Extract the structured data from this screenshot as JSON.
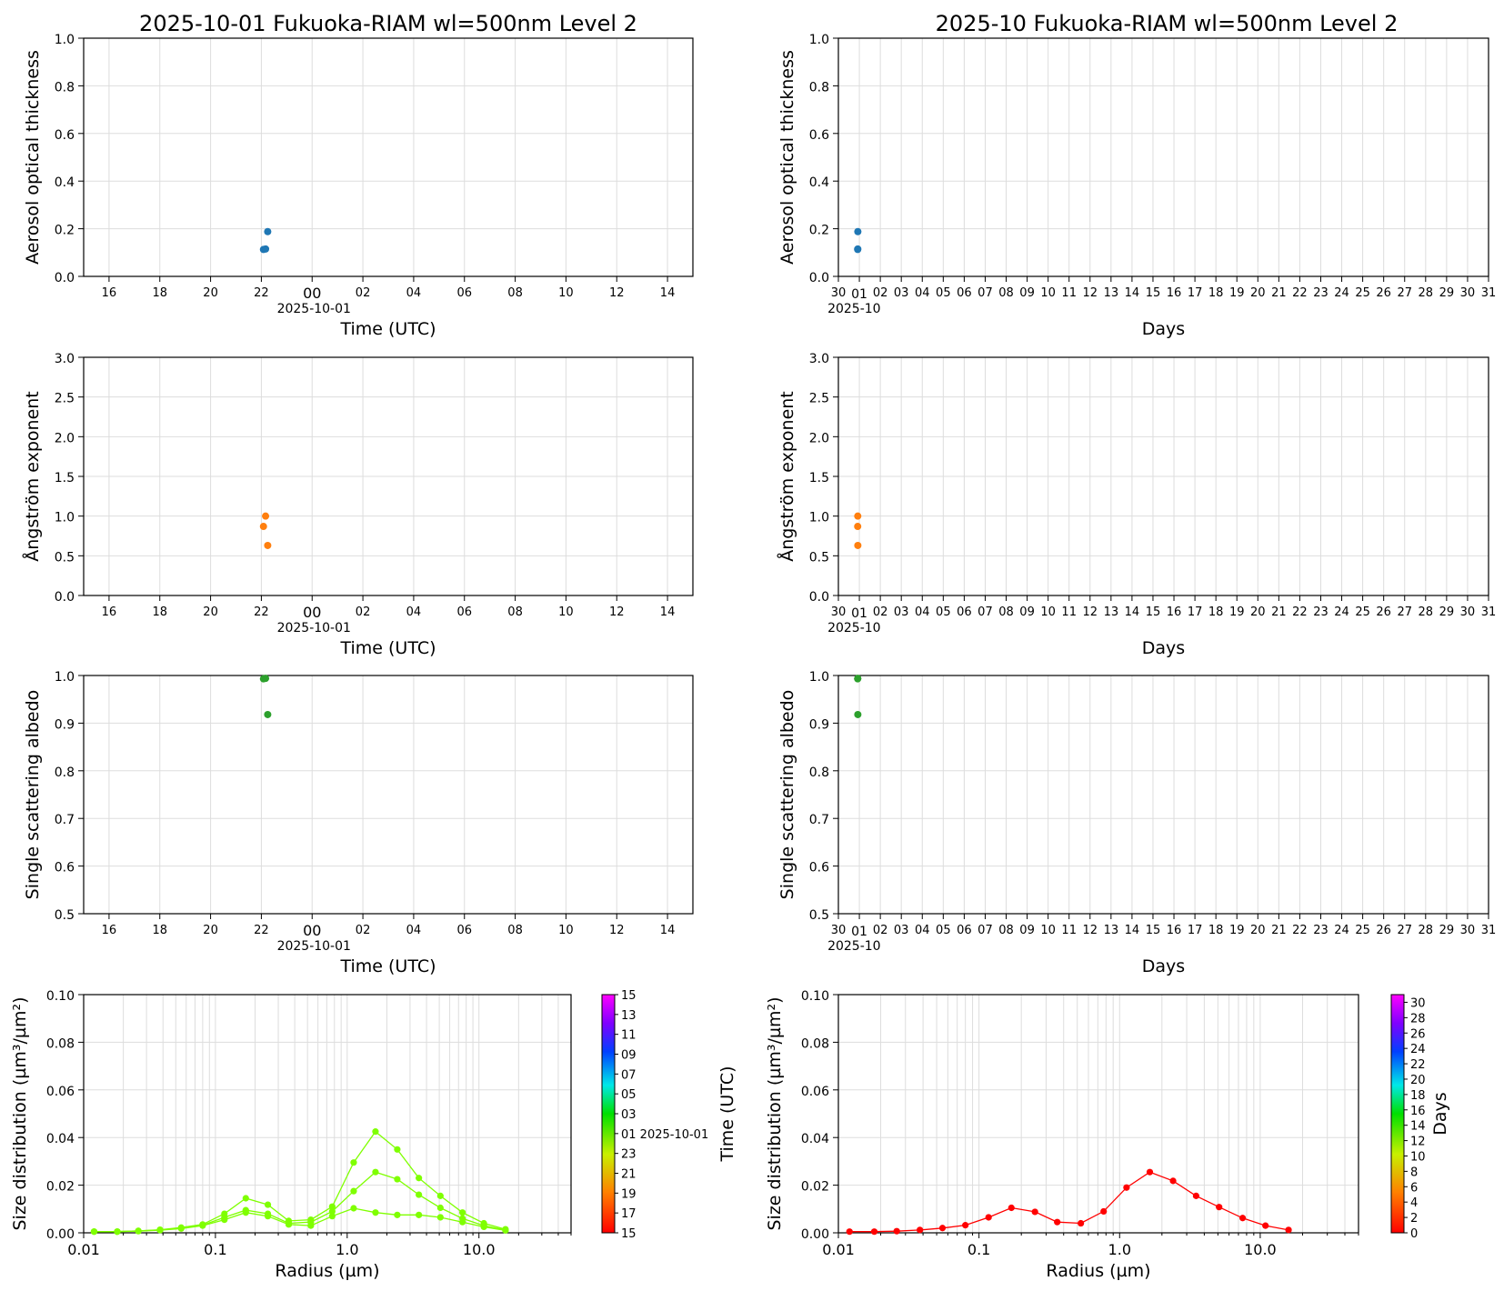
{
  "figure": {
    "left_title": "2025-10-01  Fukuoka-RIAM  wl=500nm  Level 2",
    "right_title": "2025-10  Fukuoka-RIAM  wl=500nm  Level 2"
  },
  "colors": {
    "aot": "#1f77b4",
    "angstrom": "#ff7f0e",
    "ssa": "#2ca02c",
    "size_daily": "#7fff00",
    "size_monthly": "#ff0000",
    "grid": "#dddddd"
  },
  "chart_data": [
    {
      "id": "aot_daily",
      "type": "scatter",
      "ylabel": "Aerosol optical thickness",
      "xlabel": "Time (UTC)",
      "x_date_label": "2025-10-01",
      "x_ticks": [
        "16",
        "18",
        "20",
        "22",
        "00",
        "02",
        "04",
        "06",
        "08",
        "10",
        "12",
        "14"
      ],
      "xlim": [
        "2025-09-30 15:00",
        "2025-10-01 15:00"
      ],
      "ylim": [
        0,
        1.0
      ],
      "y_ticks": [
        "0.0",
        "0.2",
        "0.4",
        "0.6",
        "0.8",
        "1.0"
      ],
      "grid": true,
      "points": [
        {
          "x": "2025-09-30 22:05",
          "y": 0.113
        },
        {
          "x": "2025-09-30 22:10",
          "y": 0.115
        },
        {
          "x": "2025-09-30 22:15",
          "y": 0.188
        }
      ]
    },
    {
      "id": "aot_monthly",
      "type": "scatter",
      "ylabel": "Aerosol optical thickness",
      "xlabel": "Days",
      "x_date_label": "2025-10",
      "x_ticks": [
        "30",
        "01",
        "02",
        "03",
        "04",
        "05",
        "06",
        "07",
        "08",
        "09",
        "10",
        "11",
        "12",
        "13",
        "14",
        "15",
        "16",
        "17",
        "18",
        "19",
        "20",
        "21",
        "22",
        "23",
        "24",
        "25",
        "26",
        "27",
        "28",
        "29",
        "30",
        "31"
      ],
      "xlim": [
        "2025-09-30",
        "2025-10-31"
      ],
      "ylim": [
        0,
        1.0
      ],
      "y_ticks": [
        "0.0",
        "0.2",
        "0.4",
        "0.6",
        "0.8",
        "1.0"
      ],
      "grid": true,
      "points": [
        {
          "x": "2025-09-30 22:05",
          "y": 0.113
        },
        {
          "x": "2025-09-30 22:10",
          "y": 0.115
        },
        {
          "x": "2025-09-30 22:15",
          "y": 0.188
        }
      ]
    },
    {
      "id": "angstrom_daily",
      "type": "scatter",
      "ylabel": "Ångström exponent",
      "xlabel": "Time (UTC)",
      "x_date_label": "2025-10-01",
      "x_ticks": [
        "16",
        "18",
        "20",
        "22",
        "00",
        "02",
        "04",
        "06",
        "08",
        "10",
        "12",
        "14"
      ],
      "xlim": [
        "2025-09-30 15:00",
        "2025-10-01 15:00"
      ],
      "ylim": [
        0,
        3.0
      ],
      "y_ticks": [
        "0.0",
        "0.5",
        "1.0",
        "1.5",
        "2.0",
        "2.5",
        "3.0"
      ],
      "grid": true,
      "points": [
        {
          "x": "2025-09-30 22:05",
          "y": 0.87
        },
        {
          "x": "2025-09-30 22:10",
          "y": 1.0
        },
        {
          "x": "2025-09-30 22:15",
          "y": 0.63
        }
      ]
    },
    {
      "id": "angstrom_monthly",
      "type": "scatter",
      "ylabel": "Ångström exponent",
      "xlabel": "Days",
      "x_date_label": "2025-10",
      "x_ticks": [
        "30",
        "01",
        "02",
        "03",
        "04",
        "05",
        "06",
        "07",
        "08",
        "09",
        "10",
        "11",
        "12",
        "13",
        "14",
        "15",
        "16",
        "17",
        "18",
        "19",
        "20",
        "21",
        "22",
        "23",
        "24",
        "25",
        "26",
        "27",
        "28",
        "29",
        "30",
        "31"
      ],
      "xlim": [
        "2025-09-30",
        "2025-10-31"
      ],
      "ylim": [
        0,
        3.0
      ],
      "y_ticks": [
        "0.0",
        "0.5",
        "1.0",
        "1.5",
        "2.0",
        "2.5",
        "3.0"
      ],
      "grid": true,
      "points": [
        {
          "x": "2025-09-30 22:05",
          "y": 0.87
        },
        {
          "x": "2025-09-30 22:10",
          "y": 1.0
        },
        {
          "x": "2025-09-30 22:15",
          "y": 0.63
        }
      ]
    },
    {
      "id": "ssa_daily",
      "type": "scatter",
      "ylabel": "Single scattering albedo",
      "xlabel": "Time (UTC)",
      "x_date_label": "2025-10-01",
      "x_ticks": [
        "16",
        "18",
        "20",
        "22",
        "00",
        "02",
        "04",
        "06",
        "08",
        "10",
        "12",
        "14"
      ],
      "xlim": [
        "2025-09-30 15:00",
        "2025-10-01 15:00"
      ],
      "ylim": [
        0.5,
        1.0
      ],
      "y_ticks": [
        "0.5",
        "0.6",
        "0.7",
        "0.8",
        "0.9",
        "1.0"
      ],
      "grid": true,
      "points": [
        {
          "x": "2025-09-30 22:05",
          "y": 0.993
        },
        {
          "x": "2025-09-30 22:10",
          "y": 0.994
        },
        {
          "x": "2025-09-30 22:15",
          "y": 0.918
        }
      ]
    },
    {
      "id": "ssa_monthly",
      "type": "scatter",
      "ylabel": "Single scattering albedo",
      "xlabel": "Days",
      "x_date_label": "2025-10",
      "x_ticks": [
        "30",
        "01",
        "02",
        "03",
        "04",
        "05",
        "06",
        "07",
        "08",
        "09",
        "10",
        "11",
        "12",
        "13",
        "14",
        "15",
        "16",
        "17",
        "18",
        "19",
        "20",
        "21",
        "22",
        "23",
        "24",
        "25",
        "26",
        "27",
        "28",
        "29",
        "30",
        "31"
      ],
      "xlim": [
        "2025-09-30",
        "2025-10-31"
      ],
      "ylim": [
        0.5,
        1.0
      ],
      "y_ticks": [
        "0.5",
        "0.6",
        "0.7",
        "0.8",
        "0.9",
        "1.0"
      ],
      "grid": true,
      "points": [
        {
          "x": "2025-09-30 22:05",
          "y": 0.993
        },
        {
          "x": "2025-09-30 22:10",
          "y": 0.994
        },
        {
          "x": "2025-09-30 22:15",
          "y": 0.918
        }
      ]
    },
    {
      "id": "size_daily",
      "type": "line",
      "ylabel": "Size distribution (µm³/µm²)",
      "xlabel": "Radius (µm)",
      "x_scale": "log",
      "xlim": [
        0.01,
        50
      ],
      "ylim": [
        0,
        0.1
      ],
      "x_ticks": [
        "0.01",
        "0.1",
        "1.0",
        "10.0"
      ],
      "y_ticks": [
        "0.00",
        "0.02",
        "0.04",
        "0.06",
        "0.08",
        "0.10"
      ],
      "grid": true,
      "x": [
        0.012,
        0.018,
        0.026,
        0.038,
        0.055,
        0.08,
        0.117,
        0.17,
        0.25,
        0.36,
        0.53,
        0.77,
        1.12,
        1.64,
        2.4,
        3.5,
        5.1,
        7.5,
        10.9,
        15.9
      ],
      "series": [
        {
          "values": [
            0.0005,
            0.0005,
            0.0008,
            0.0013,
            0.0022,
            0.0035,
            0.008,
            0.0145,
            0.0118,
            0.005,
            0.0055,
            0.011,
            0.0295,
            0.0425,
            0.035,
            0.023,
            0.0155,
            0.0085,
            0.004,
            0.0015
          ]
        },
        {
          "values": [
            0.0005,
            0.0005,
            0.0008,
            0.0012,
            0.002,
            0.0032,
            0.0065,
            0.0095,
            0.008,
            0.004,
            0.0045,
            0.009,
            0.0175,
            0.0255,
            0.0225,
            0.016,
            0.0105,
            0.006,
            0.003,
            0.0012
          ]
        },
        {
          "values": [
            0.0005,
            0.0005,
            0.0007,
            0.0011,
            0.0018,
            0.003,
            0.0055,
            0.0085,
            0.007,
            0.0035,
            0.003,
            0.007,
            0.0103,
            0.0085,
            0.0075,
            0.0075,
            0.0065,
            0.0045,
            0.0025,
            0.001
          ]
        }
      ],
      "colorbar": {
        "label": "Time (UTC)",
        "ticks": [
          "15",
          "17",
          "19",
          "21",
          "23",
          "01 2025-10-01",
          "03",
          "05",
          "07",
          "09",
          "11",
          "13",
          "15"
        ]
      }
    },
    {
      "id": "size_monthly",
      "type": "line",
      "ylabel": "Size distribution (µm³/µm²)",
      "xlabel": "Radius (µm)",
      "x_scale": "log",
      "xlim": [
        0.01,
        50
      ],
      "ylim": [
        0,
        0.1
      ],
      "x_ticks": [
        "0.01",
        "0.1",
        "1.0",
        "10.0"
      ],
      "y_ticks": [
        "0.00",
        "0.02",
        "0.04",
        "0.06",
        "0.08",
        "0.10"
      ],
      "grid": true,
      "x": [
        0.012,
        0.018,
        0.026,
        0.038,
        0.055,
        0.08,
        0.117,
        0.17,
        0.25,
        0.36,
        0.53,
        0.77,
        1.12,
        1.64,
        2.4,
        3.5,
        5.1,
        7.5,
        10.9,
        15.9
      ],
      "series": [
        {
          "values": [
            0.0005,
            0.0005,
            0.0007,
            0.0012,
            0.002,
            0.0032,
            0.0065,
            0.0105,
            0.0088,
            0.0045,
            0.004,
            0.009,
            0.019,
            0.0255,
            0.0218,
            0.0155,
            0.0108,
            0.0062,
            0.003,
            0.0012
          ]
        }
      ],
      "colorbar": {
        "label": "Days",
        "ticks": [
          "0",
          "2",
          "4",
          "6",
          "8",
          "10",
          "12",
          "14",
          "16",
          "18",
          "20",
          "22",
          "24",
          "26",
          "28",
          "30"
        ]
      }
    }
  ]
}
